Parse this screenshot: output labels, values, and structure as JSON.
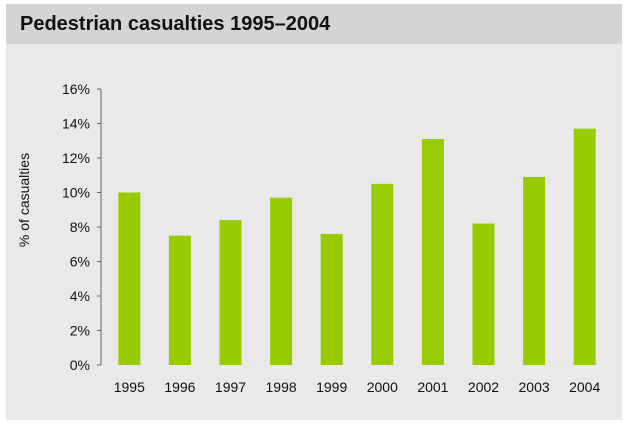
{
  "chart_data": {
    "type": "bar",
    "title": "Pedestrian casualties 1995–2004",
    "xlabel": "",
    "ylabel": "% of casualties",
    "categories": [
      "1995",
      "1996",
      "1997",
      "1998",
      "1999",
      "2000",
      "2001",
      "2002",
      "2003",
      "2004"
    ],
    "values": [
      10.0,
      7.5,
      8.4,
      9.7,
      7.6,
      10.5,
      13.1,
      8.2,
      10.9,
      13.7
    ],
    "ylim": [
      0,
      16
    ],
    "yticks": [
      "0%",
      "2%",
      "4%",
      "6%",
      "8%",
      "10%",
      "12%",
      "14%",
      "16%"
    ],
    "ytick_values": [
      0,
      2,
      4,
      6,
      8,
      10,
      12,
      14,
      16
    ],
    "grid": false,
    "bar_color": "#99cc00",
    "background_color": "#e9e9e9",
    "title_bar_color": "#d4d4d4"
  }
}
